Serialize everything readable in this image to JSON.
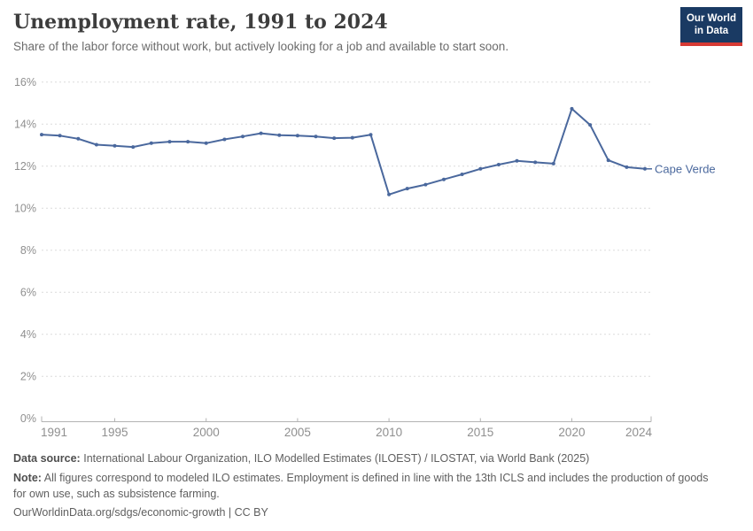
{
  "header": {
    "title": "Unemployment rate, 1991 to 2024",
    "subtitle": "Share of the labor force without work, but actively looking for a job and available to start soon.",
    "logo": {
      "line1": "Our World",
      "line2": "in Data",
      "bg_color": "#1a3a63",
      "accent_color": "#d73a34"
    }
  },
  "chart_data": {
    "type": "line",
    "title": "Unemployment rate, 1991 to 2024",
    "entity_label": "Cape Verde",
    "unit": "%",
    "x": [
      1991,
      1992,
      1993,
      1994,
      1995,
      1996,
      1997,
      1998,
      1999,
      2000,
      2001,
      2002,
      2003,
      2004,
      2005,
      2006,
      2007,
      2008,
      2009,
      2010,
      2011,
      2012,
      2013,
      2014,
      2015,
      2016,
      2017,
      2018,
      2019,
      2020,
      2021,
      2022,
      2023,
      2024
    ],
    "series": [
      {
        "name": "Cape Verde",
        "color": "#4a689d",
        "values": [
          13.5,
          13.45,
          13.3,
          13.02,
          12.97,
          12.91,
          13.09,
          13.16,
          13.16,
          13.09,
          13.27,
          13.41,
          13.56,
          13.47,
          13.45,
          13.41,
          13.33,
          13.35,
          13.49,
          10.65,
          10.93,
          11.12,
          11.37,
          11.61,
          11.87,
          12.07,
          12.25,
          12.18,
          12.12,
          14.73,
          13.96,
          12.28,
          11.95,
          11.87
        ]
      }
    ],
    "ylim": [
      0,
      16
    ],
    "yticks": [
      0,
      2,
      4,
      6,
      8,
      10,
      12,
      14,
      16
    ],
    "xticks": [
      1991,
      1995,
      2000,
      2005,
      2010,
      2015,
      2020,
      2024
    ],
    "grid": true,
    "legend_position": "end-of-line",
    "grid_color": "#dcdcdc",
    "axis_color": "#b3b3b3",
    "tick_label_color": "#8f8f8f"
  },
  "footer": {
    "source_label": "Data source:",
    "source_text": "International Labour Organization, ILO Modelled Estimates (ILOEST) / ILOSTAT, via World Bank (2025)",
    "note_label": "Note:",
    "note_text": "All figures correspond to modeled ILO estimates. Employment is defined in line with the 13th ICLS and includes the production of goods for own use, such as subsistence farming.",
    "credit": "OurWorldinData.org/sdgs/economic-growth | CC BY"
  }
}
